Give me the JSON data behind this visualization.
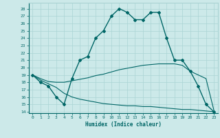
{
  "xlabel": "Humidex (Indice chaleur)",
  "background_color": "#cce9e9",
  "grid_color": "#aad4d4",
  "line_color": "#006666",
  "xlim": [
    -0.5,
    23.5
  ],
  "ylim": [
    13.8,
    28.8
  ],
  "xticks": [
    0,
    1,
    2,
    3,
    4,
    5,
    6,
    7,
    8,
    9,
    10,
    11,
    12,
    13,
    14,
    15,
    16,
    17,
    18,
    19,
    20,
    21,
    22,
    23
  ],
  "yticks": [
    14,
    15,
    16,
    17,
    18,
    19,
    20,
    21,
    22,
    23,
    24,
    25,
    26,
    27,
    28
  ],
  "line1_x": [
    0,
    1,
    2,
    3,
    4,
    5,
    6,
    7,
    8,
    9,
    10,
    11,
    12,
    13,
    14,
    15,
    16,
    17,
    18,
    19,
    20,
    21,
    22,
    23
  ],
  "line1_y": [
    19,
    18,
    17.5,
    16,
    15,
    18.5,
    21,
    21.5,
    24,
    25,
    27,
    28,
    27.5,
    26.5,
    26.5,
    27.5,
    27.5,
    24,
    21,
    21,
    19.5,
    17.5,
    15,
    14
  ],
  "line2_x": [
    0,
    1,
    2,
    3,
    4,
    5,
    6,
    7,
    8,
    9,
    10,
    11,
    12,
    13,
    14,
    15,
    16,
    17,
    18,
    19,
    20,
    21,
    22,
    23
  ],
  "line2_y": [
    19,
    18.5,
    18.1,
    18.0,
    18.0,
    18.2,
    18.4,
    18.6,
    18.9,
    19.1,
    19.4,
    19.7,
    19.9,
    20.1,
    20.3,
    20.4,
    20.5,
    20.5,
    20.5,
    20.3,
    19.5,
    19.0,
    18.5,
    14.2
  ],
  "line3_x": [
    0,
    1,
    2,
    3,
    4,
    5,
    6,
    7,
    8,
    9,
    10,
    11,
    12,
    13,
    14,
    15,
    16,
    17,
    18,
    19,
    20,
    21,
    22,
    23
  ],
  "line3_y": [
    19,
    18.3,
    17.8,
    17.3,
    16.5,
    16.0,
    15.7,
    15.5,
    15.3,
    15.1,
    15.0,
    14.9,
    14.8,
    14.8,
    14.7,
    14.7,
    14.6,
    14.5,
    14.4,
    14.3,
    14.3,
    14.2,
    14.1,
    14.0
  ]
}
